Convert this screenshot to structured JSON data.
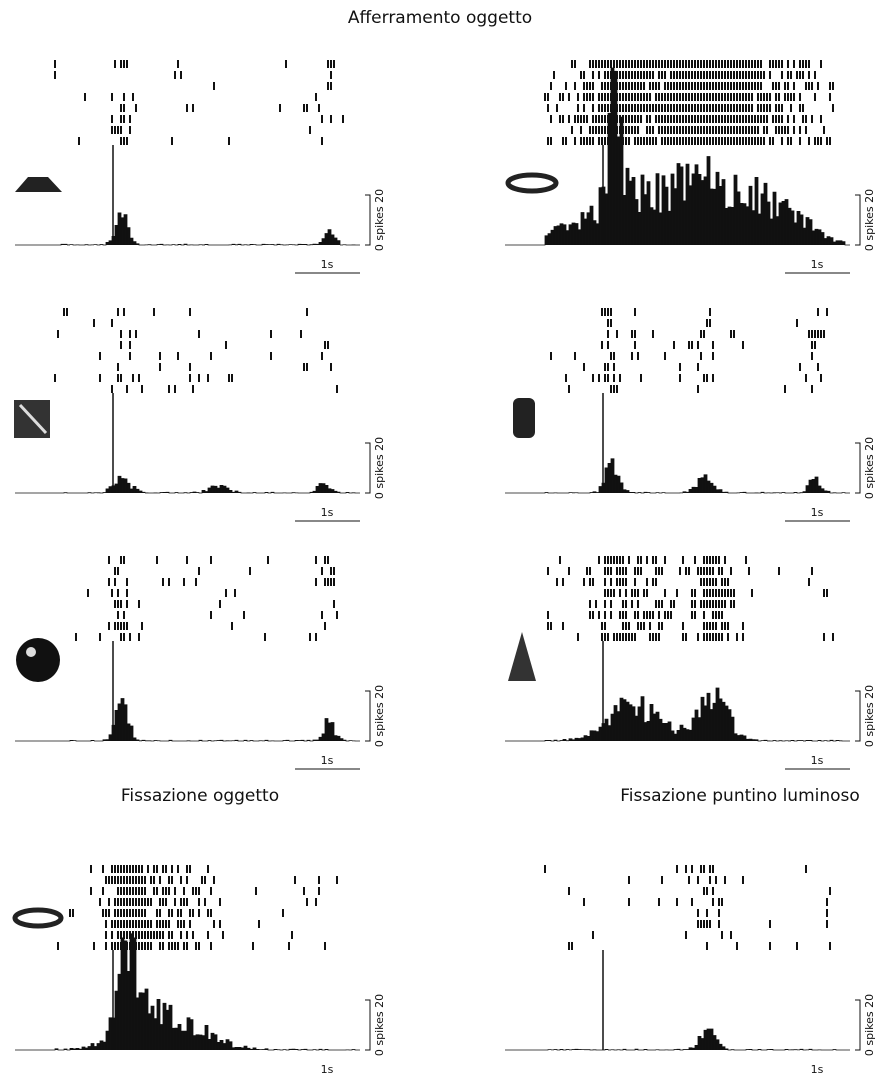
{
  "header": {
    "title": "Afferramento oggetto"
  },
  "sections": [
    {
      "title": "Fissazione oggetto"
    },
    {
      "title": "Fissazione puntino luminoso"
    }
  ],
  "panels": [
    {
      "scale_label": "0 spikes 20",
      "time_label": "1s"
    },
    {
      "scale_label": "0 spikes 20",
      "time_label": "1s"
    },
    {
      "scale_label": "0 spikes 20",
      "time_label": "1s"
    },
    {
      "scale_label": "0 spikes 20",
      "time_label": "1s"
    },
    {
      "scale_label": "0 spikes 20",
      "time_label": "1s"
    },
    {
      "scale_label": "0 spikes 20",
      "time_label": "1s"
    },
    {
      "scale_label": "0 spikes 20",
      "time_label": "1s"
    },
    {
      "scale_label": "0 spikes 20",
      "time_label": "1s"
    }
  ]
}
